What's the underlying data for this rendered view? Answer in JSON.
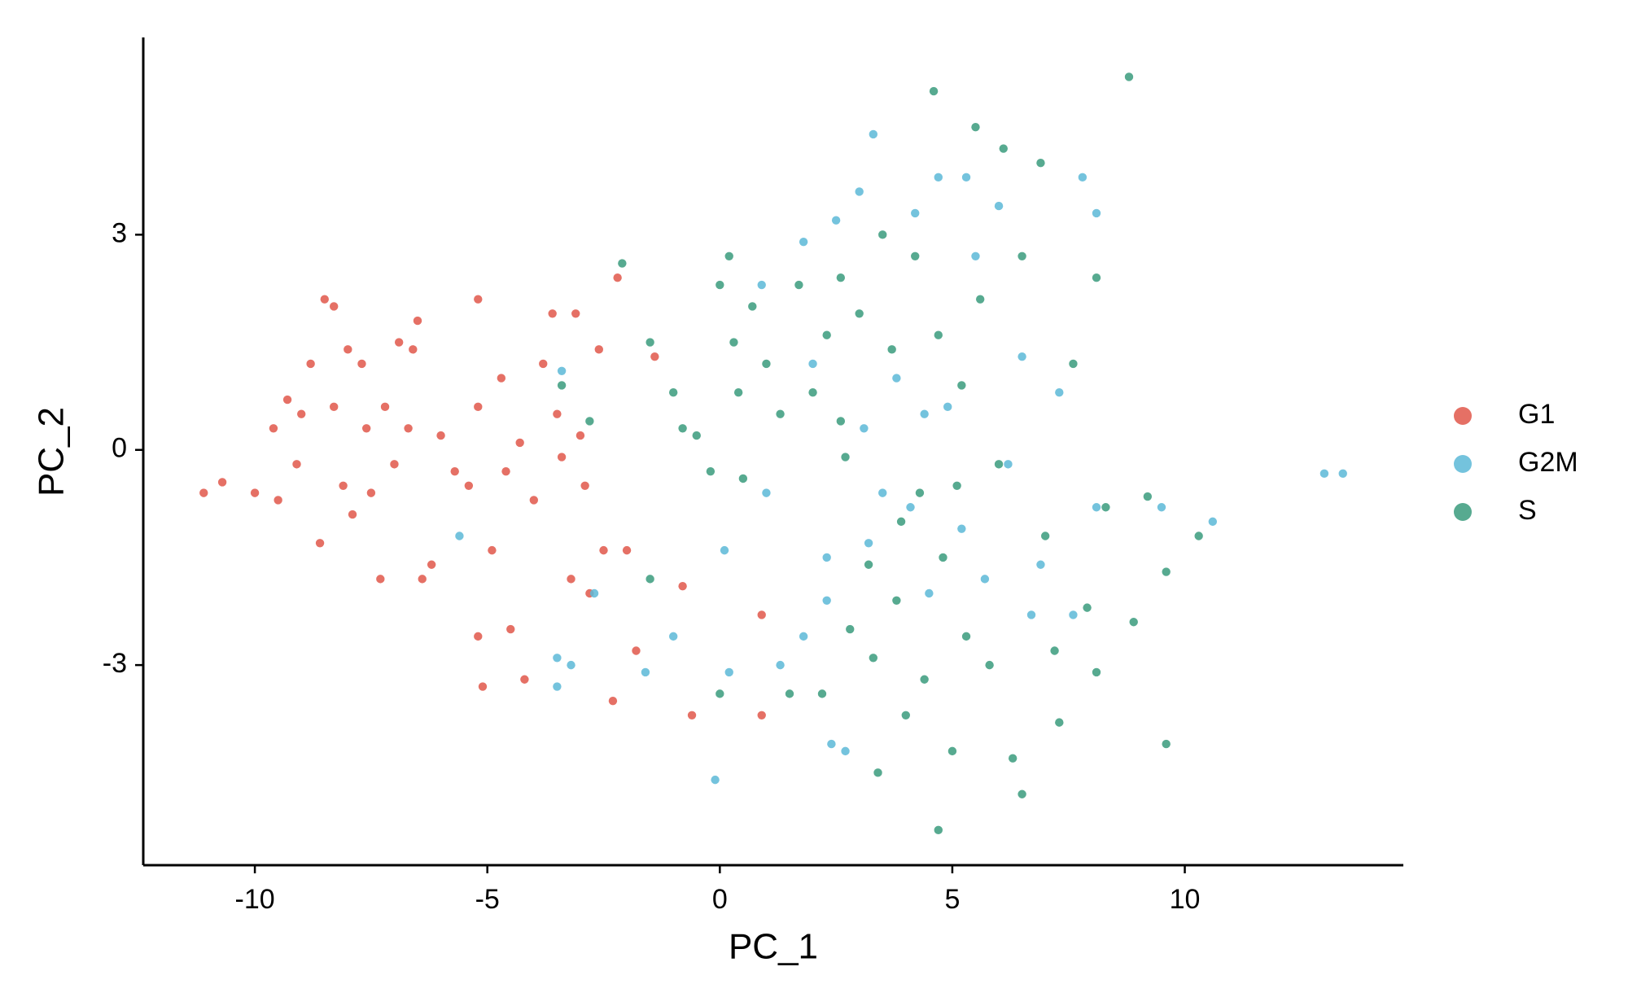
{
  "chart_data": {
    "type": "scatter",
    "x_label": "PC_1",
    "y_label": "PC_2",
    "xlim": [
      -12.4,
      14.7
    ],
    "ylim": [
      -5.79,
      5.75
    ],
    "xticks": [
      -10,
      -5,
      0,
      5,
      10
    ],
    "yticks": [
      -3,
      0,
      3
    ],
    "grid": false,
    "legend": "right",
    "series": [
      {
        "name": "G1",
        "color": "#e0574a",
        "x": [
          -11.1,
          -10.7,
          -10,
          -9.6,
          -9.5,
          -9.3,
          -9.1,
          -9,
          -8.8,
          -8.6,
          -8.5,
          -8.3,
          -8.3,
          -8.1,
          -8,
          -7.9,
          -7.7,
          -7.6,
          -7.5,
          -7.3,
          -7.2,
          -7,
          -6.9,
          -6.7,
          -6.6,
          -6.5,
          -6.4,
          -6.2,
          -6,
          -5.7,
          -5.4,
          -5.2,
          -5.2,
          -5.2,
          -5.1,
          -4.9,
          -4.7,
          -4.6,
          -4.5,
          -4.3,
          -4.2,
          -4,
          -3.8,
          -3.6,
          -3.5,
          -3.4,
          -3.2,
          -3.1,
          -3,
          -2.9,
          -2.8,
          -2.6,
          -2.5,
          -2.3,
          -2.2,
          -2,
          -1.8,
          -1.4,
          -0.8,
          -0.6,
          0.9,
          0.9
        ],
        "values": [
          -0.6,
          -0.45,
          -0.6,
          0.3,
          -0.7,
          0.7,
          -0.2,
          0.5,
          1.2,
          -1.3,
          2.1,
          2,
          0.6,
          -0.5,
          1.4,
          -0.9,
          1.2,
          0.3,
          -0.6,
          -1.8,
          0.6,
          -0.2,
          1.5,
          0.3,
          1.4,
          1.8,
          -1.8,
          -1.6,
          0.2,
          -0.3,
          -0.5,
          2.1,
          0.6,
          -2.6,
          -3.3,
          -1.4,
          1,
          -0.3,
          -2.5,
          0.1,
          -3.2,
          -0.7,
          1.2,
          1.9,
          0.5,
          -0.1,
          -1.8,
          1.9,
          0.2,
          -0.5,
          -2,
          1.4,
          -1.4,
          -3.5,
          2.4,
          -1.4,
          -2.8,
          1.3,
          -1.9,
          -3.7,
          -2.3,
          -3.7
        ]
      },
      {
        "name": "G2M",
        "color": "#5cb9d7",
        "x": [
          -3.4,
          -5.6,
          -3.5,
          -3.2,
          -3.5,
          -2.7,
          -1.6,
          -1,
          -0.1,
          0.1,
          0.2,
          0.9,
          1,
          1.3,
          1.8,
          1.8,
          2,
          2.3,
          2.3,
          2.5,
          2.7,
          3,
          3.1,
          3.2,
          3.3,
          3.5,
          3.8,
          4.2,
          4.4,
          4.5,
          4.7,
          4.9,
          5.2,
          5.3,
          5.5,
          6,
          6.2,
          6.5,
          6.9,
          7.3,
          7.8,
          8.1,
          8.1,
          9.5,
          10.6,
          13,
          13.4,
          5.7,
          4.1,
          2.4,
          6.7,
          7.6
        ],
        "values": [
          1.1,
          -1.2,
          -2.9,
          -3,
          -3.3,
          -2,
          -3.1,
          -2.6,
          -4.6,
          -1.4,
          -3.1,
          2.3,
          -0.6,
          -3,
          -2.6,
          2.9,
          1.2,
          -1.5,
          -2.1,
          3.2,
          -4.2,
          3.6,
          0.3,
          -1.3,
          4.4,
          -0.6,
          1,
          3.3,
          0.5,
          -2,
          3.8,
          0.6,
          -1.1,
          3.8,
          2.7,
          3.4,
          -0.2,
          1.3,
          -1.6,
          0.8,
          3.8,
          3.3,
          -0.8,
          -0.8,
          -1,
          -0.33,
          -0.33,
          -1.8,
          -0.8,
          -4.1,
          -2.3,
          -2.3
        ]
      },
      {
        "name": "S",
        "color": "#3a9b7d",
        "x": [
          -3.4,
          -2.8,
          -2.1,
          -1.5,
          -1,
          -0.8,
          -0.5,
          0,
          0.2,
          0.3,
          0.4,
          0.5,
          0.7,
          1,
          1.3,
          1.7,
          2,
          2.2,
          2.3,
          2.6,
          2.7,
          2.8,
          3,
          3.2,
          3.3,
          3.4,
          3.5,
          3.7,
          3.8,
          4,
          4.2,
          4.3,
          4.4,
          4.6,
          4.7,
          4.7,
          4.8,
          5,
          5.2,
          5.3,
          5.5,
          5.6,
          5.8,
          6,
          6.1,
          6.3,
          6.5,
          6.5,
          6.9,
          7,
          7.3,
          7.6,
          7.9,
          8.1,
          8.1,
          8.3,
          8.8,
          8.9,
          9.2,
          9.6,
          9.6,
          10.3,
          7.2,
          5.1,
          3.9,
          1.5,
          0,
          -1.5,
          -0.2,
          2.6
        ],
        "values": [
          0.9,
          0.4,
          2.6,
          1.5,
          0.8,
          0.3,
          0.2,
          2.3,
          2.7,
          1.5,
          0.8,
          -0.4,
          2,
          1.2,
          0.5,
          2.3,
          0.8,
          -3.4,
          1.6,
          2.4,
          -0.1,
          -2.5,
          1.9,
          -1.6,
          -2.9,
          -4.5,
          3,
          1.4,
          -2.1,
          -3.7,
          2.7,
          -0.6,
          -3.2,
          5,
          1.6,
          -5.3,
          -1.5,
          -4.2,
          0.9,
          -2.6,
          4.5,
          2.1,
          -3,
          -0.2,
          4.2,
          -4.3,
          2.7,
          -4.8,
          4,
          -1.2,
          -3.8,
          1.2,
          -2.2,
          -3.1,
          2.4,
          -0.8,
          5.2,
          -2.4,
          -0.65,
          -1.7,
          -4.1,
          -1.2,
          -2.8,
          -0.5,
          -1,
          -3.4,
          -3.4,
          -1.8,
          -0.3,
          0.4
        ]
      }
    ]
  }
}
